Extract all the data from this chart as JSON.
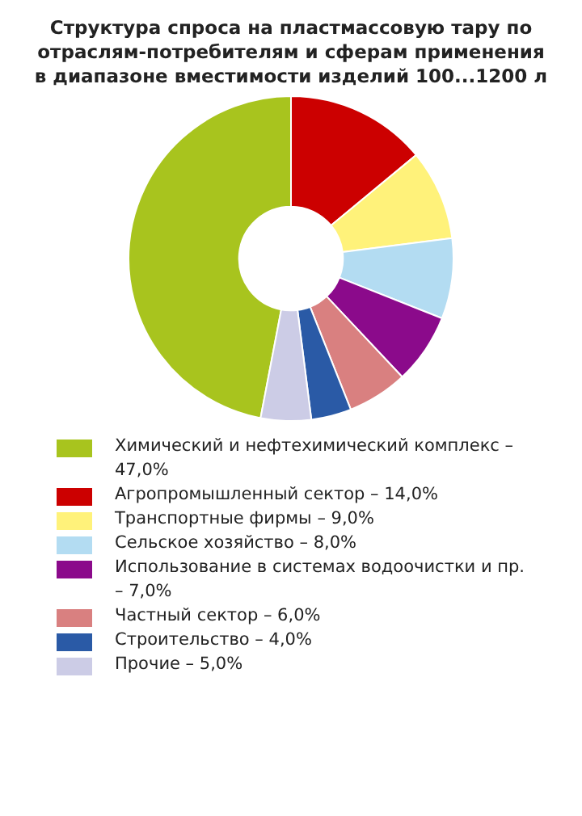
{
  "chart_data": {
    "type": "donut",
    "title": "Структура спроса на пластмассовую тару по отраслям-потребителям и сферам применения в диапазоне вместимости изделий 100...1200 л",
    "categories": [
      "Химический и нефтехимический комплекс – 47,0%",
      "Агропромышленный сектор – 14,0%",
      "Транспортные фирмы – 9,0%",
      "Сельское хозяйство – 8,0%",
      "Использование в системах водоочистки и пр. – 7,0%",
      "Частный сектор – 6,0%",
      "Строительство – 4,0%",
      "Прочие – 5,0%"
    ],
    "values": [
      47,
      14,
      9,
      8,
      7,
      6,
      4,
      5
    ],
    "colors": [
      "#a8c41e",
      "#cc0000",
      "#fff27a",
      "#b3dcf2",
      "#8b0a8b",
      "#d98080",
      "#2a5aa6",
      "#cccce6"
    ],
    "legend": "bottom"
  }
}
